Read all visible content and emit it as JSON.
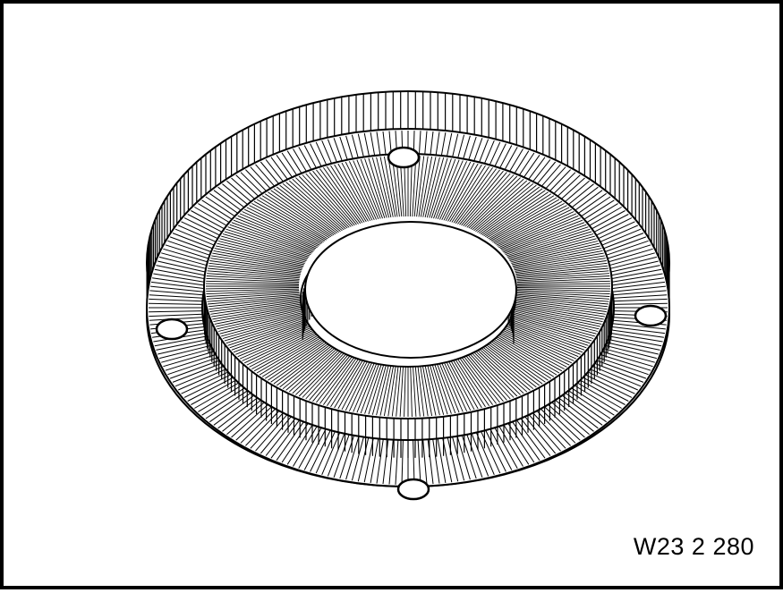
{
  "figure": {
    "code": "W23 2 280",
    "subject": "flange-ring-illustration",
    "bolt_hole_count": 4,
    "colors": {
      "ink": "#000000",
      "paper": "#ffffff"
    }
  }
}
